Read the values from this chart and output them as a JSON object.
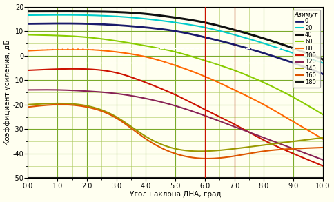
{
  "xlabel": "Угол наклона ДНА, град",
  "ylabel": "Коэффициент усиления, дБ",
  "legend_title": "Азимут",
  "xlim": [
    0,
    10
  ],
  "ylim": [
    -50,
    20
  ],
  "xticks": [
    0.0,
    1.0,
    2.0,
    3.0,
    4.0,
    5.0,
    6.0,
    7.0,
    8.0,
    9.0,
    10.0
  ],
  "yticks": [
    -50,
    -40,
    -30,
    -20,
    -10,
    0,
    10,
    20
  ],
  "background_color": "#FFFFF0",
  "grid_major_color": "#7aaa2a",
  "grid_minor_color": "#aac85a",
  "vline_x": [
    6.0,
    7.0
  ],
  "vline_color": "#cc1100",
  "hline_y": [
    3.0,
    -3.0
  ],
  "hline_color": "#ffffff",
  "curves": [
    {
      "label": "0",
      "color": "#1a1a6a",
      "lw": 2.0,
      "points_x": [
        0,
        2,
        4,
        5,
        6,
        7,
        8,
        9,
        10
      ],
      "points_y": [
        13.0,
        13.0,
        11.5,
        10.0,
        7.5,
        4.5,
        1.0,
        -3.0,
        -7.5
      ]
    },
    {
      "label": "20",
      "color": "#00cccc",
      "lw": 1.5,
      "points_x": [
        0,
        2,
        4,
        5,
        6,
        7,
        8,
        9,
        10
      ],
      "points_y": [
        16.5,
        16.5,
        15.0,
        13.5,
        11.5,
        8.5,
        5.0,
        1.0,
        -3.0
      ]
    },
    {
      "label": "40",
      "color": "#101010",
      "lw": 2.2,
      "points_x": [
        0,
        2,
        4,
        5,
        6,
        7,
        8,
        9,
        10
      ],
      "points_y": [
        18.0,
        18.0,
        17.0,
        15.5,
        13.5,
        10.5,
        7.0,
        3.0,
        -1.5
      ]
    },
    {
      "label": "60",
      "color": "#88cc00",
      "lw": 1.5,
      "points_x": [
        0,
        1,
        2,
        3,
        4,
        5,
        6,
        7,
        8,
        9,
        10
      ],
      "points_y": [
        8.5,
        8.2,
        7.5,
        6.0,
        4.0,
        1.5,
        -2.0,
        -6.0,
        -11.0,
        -17.0,
        -24.0
      ]
    },
    {
      "label": "80",
      "color": "#ff6600",
      "lw": 1.5,
      "points_x": [
        0,
        1,
        2,
        3,
        4,
        5,
        6,
        7,
        8,
        9,
        10
      ],
      "points_y": [
        2.0,
        2.5,
        2.5,
        1.5,
        -0.5,
        -4.0,
        -8.5,
        -14.0,
        -20.0,
        -27.0,
        -34.0
      ]
    },
    {
      "label": "100",
      "color": "#cc1100",
      "lw": 1.5,
      "points_x": [
        0,
        1,
        2,
        3,
        4,
        5,
        6,
        7,
        8,
        9,
        10
      ],
      "points_y": [
        -6.0,
        -5.5,
        -5.5,
        -7.0,
        -11.0,
        -16.0,
        -22.0,
        -28.0,
        -34.5,
        -40.0,
        -45.0
      ]
    },
    {
      "label": "120",
      "color": "#882255",
      "lw": 1.5,
      "points_x": [
        0,
        1,
        2,
        3,
        4,
        5,
        6,
        7,
        8,
        9,
        10
      ],
      "points_y": [
        -14.0,
        -14.0,
        -14.5,
        -15.5,
        -17.5,
        -20.5,
        -24.5,
        -29.0,
        -33.5,
        -38.0,
        -42.5
      ]
    },
    {
      "label": "140",
      "color": "#999900",
      "lw": 1.5,
      "points_x": [
        0,
        1,
        2,
        3,
        4,
        5,
        6,
        7,
        8,
        9,
        10
      ],
      "points_y": [
        -20.0,
        -19.5,
        -20.5,
        -25.0,
        -33.0,
        -38.0,
        -39.0,
        -38.0,
        -36.5,
        -35.0,
        -33.5
      ]
    },
    {
      "label": "160",
      "color": "#dd5500",
      "lw": 1.5,
      "points_x": [
        0,
        1,
        2,
        3,
        4,
        5,
        6,
        7,
        8,
        9,
        10
      ],
      "points_y": [
        -21.0,
        -20.0,
        -21.0,
        -25.5,
        -34.0,
        -40.0,
        -42.0,
        -41.0,
        -39.0,
        -38.0,
        -37.5
      ]
    },
    {
      "label": "180",
      "color": "#1a1a1a",
      "lw": 1.5,
      "points_x": [
        0,
        2,
        4,
        6,
        8,
        10
      ],
      "points_y": [
        -50,
        -50,
        -50,
        -50,
        -50,
        -50
      ]
    }
  ]
}
